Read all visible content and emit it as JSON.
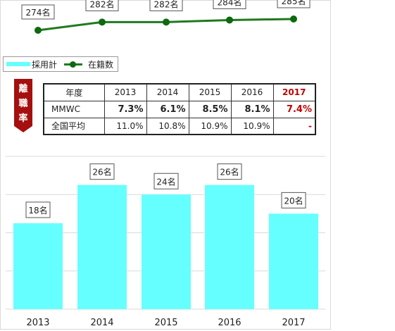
{
  "legend": {
    "bar_label": "採用計",
    "line_label": "在籍数"
  },
  "ribbon": {
    "label": [
      "離",
      "職",
      "率"
    ]
  },
  "table": {
    "header": [
      "年度",
      "2013",
      "2014",
      "2015",
      "2016",
      "2017"
    ],
    "rows": [
      {
        "label": "MMWC",
        "values": [
          "7.3%",
          "6.1%",
          "8.5%",
          "8.1%",
          "7.4%"
        ]
      },
      {
        "label": "全国平均",
        "values": [
          "11.0%",
          "10.8%",
          "10.9%",
          "10.9%",
          "-"
        ]
      }
    ]
  },
  "chart_data": [
    {
      "type": "line",
      "categories": [
        "2013",
        "2014",
        "2015",
        "2016",
        "2017"
      ],
      "series": [
        {
          "name": "在籍数",
          "values": [
            274,
            282,
            282,
            284,
            285
          ]
        }
      ],
      "data_labels": [
        "274名",
        "282名",
        "282名",
        "284名",
        "285名"
      ],
      "colors": {
        "line": "#1e7a1e",
        "marker": "#0e6a0e"
      }
    },
    {
      "type": "bar",
      "categories": [
        "2013",
        "2014",
        "2015",
        "2016",
        "2017"
      ],
      "series": [
        {
          "name": "採用計",
          "values": [
            18,
            26,
            24,
            26,
            20
          ]
        }
      ],
      "data_labels": [
        "18名",
        "26名",
        "24名",
        "26名",
        "20名"
      ],
      "ylim": [
        0,
        32
      ],
      "grid": true,
      "colors": {
        "bar": "#66ffff",
        "grid": "#d9d9d9"
      }
    }
  ]
}
